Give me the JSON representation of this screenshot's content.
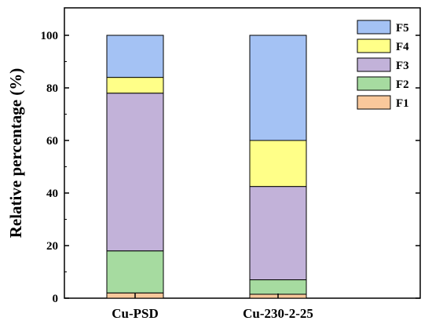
{
  "chart_data": {
    "type": "bar",
    "stacked": true,
    "categories": [
      "Cu-PSD",
      "Cu-230-2-25"
    ],
    "series": [
      {
        "name": "F1",
        "values": [
          2,
          1.5
        ],
        "color": "#F9C89B"
      },
      {
        "name": "F2",
        "values": [
          16,
          5.5
        ],
        "color": "#A6DBA0"
      },
      {
        "name": "F3",
        "values": [
          60,
          35.5
        ],
        "color": "#C2B2D9"
      },
      {
        "name": "F4",
        "values": [
          6,
          17.5
        ],
        "color": "#FFFF88"
      },
      {
        "name": "F5",
        "values": [
          16,
          40
        ],
        "color": "#A4C2F4"
      }
    ],
    "ylabel": "Relative percentage (%)",
    "xlabel": "",
    "ylim": [
      0,
      100
    ],
    "yticks": [
      0,
      20,
      40,
      60,
      80,
      100
    ],
    "legend_position": "top-right",
    "legend_order": [
      "F5",
      "F4",
      "F3",
      "F2",
      "F1"
    ],
    "grid": false
  }
}
